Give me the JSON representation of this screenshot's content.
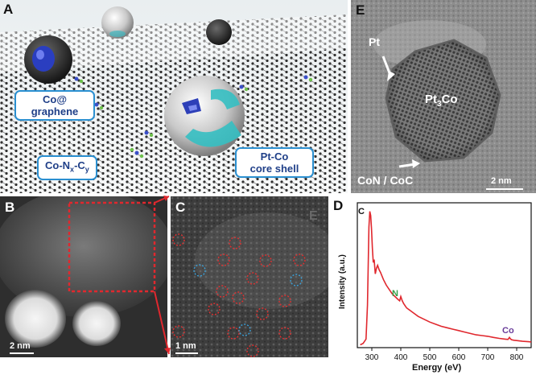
{
  "panels": {
    "a": {
      "label": "A",
      "callouts": {
        "co_graphene_line1": "Co@",
        "co_graphene_line2": "graphene",
        "conxcy_prefix": "Co-N",
        "conxcy_sub1": "x",
        "conxcy_mid": "-C",
        "conxcy_sub2": "y",
        "ptco_line1": "Pt-Co",
        "ptco_line2": "core shell"
      }
    },
    "b": {
      "label": "B",
      "scale_text": "2 nm"
    },
    "c": {
      "label": "C",
      "faint_letter": "E",
      "scale_text": "1 nm"
    },
    "d": {
      "label": "D",
      "peaks": {
        "c": "C",
        "n": "N",
        "co": "Co"
      }
    },
    "e": {
      "label": "E",
      "pt_label": "Pt",
      "pt3co_main": "Pt",
      "pt3co_sub": "3",
      "pt3co_end": "Co",
      "con_coc": "CoN / CoC",
      "scale_text": "2 nm"
    }
  },
  "colors": {
    "callout_border": "#2a8fd0",
    "callout_text": "#1f3f88",
    "spectrum_line": "#e0282e",
    "n_peak_label": "#34a048",
    "co_peak_label": "#6a3d9a",
    "red_circle": "#e03030",
    "blue_circle": "#3aa0d8"
  },
  "chart_data": {
    "type": "line",
    "title": "",
    "xlabel": "Energy (eV)",
    "ylabel": "Intensity (a.u.)",
    "xlim": [
      250,
      850
    ],
    "xticks": [
      300,
      400,
      500,
      600,
      700,
      800
    ],
    "yticks_shown": false,
    "series": [
      {
        "x": [
          260,
          270,
          280,
          285,
          290,
          293,
          296,
          299,
          302,
          305,
          308,
          312,
          316,
          320,
          325,
          330,
          340,
          350,
          360,
          370,
          380,
          390,
          396,
          400,
          405,
          410,
          420,
          440,
          460,
          480,
          500,
          520,
          540,
          560,
          580,
          600,
          620,
          640,
          660,
          680,
          700,
          720,
          740,
          760,
          770,
          775,
          778,
          782,
          790,
          800,
          820,
          840,
          850
        ],
        "y": [
          0.02,
          0.03,
          0.06,
          0.3,
          0.85,
          0.96,
          0.93,
          0.84,
          0.7,
          0.6,
          0.62,
          0.52,
          0.56,
          0.58,
          0.55,
          0.53,
          0.48,
          0.44,
          0.41,
          0.38,
          0.36,
          0.34,
          0.33,
          0.36,
          0.33,
          0.31,
          0.28,
          0.25,
          0.22,
          0.2,
          0.18,
          0.165,
          0.15,
          0.14,
          0.13,
          0.12,
          0.11,
          0.1,
          0.09,
          0.085,
          0.08,
          0.072,
          0.065,
          0.06,
          0.058,
          0.072,
          0.063,
          0.056,
          0.052,
          0.05,
          0.045,
          0.042,
          0.04
        ]
      }
    ],
    "annotations": [
      {
        "text": "C",
        "x": 290
      },
      {
        "text": "N",
        "x": 400
      },
      {
        "text": "Co",
        "x": 779
      }
    ]
  }
}
